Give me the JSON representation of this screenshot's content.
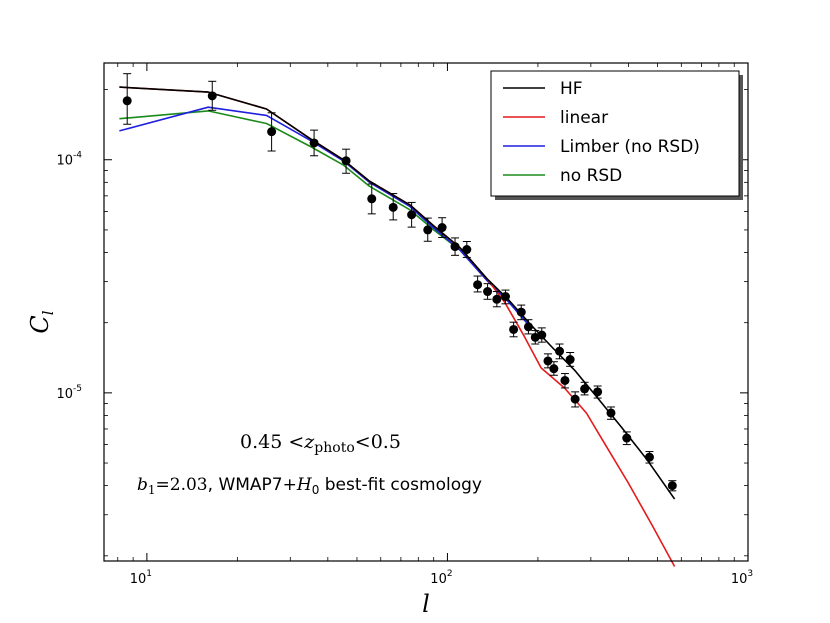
{
  "chart_data": {
    "type": "line",
    "scale": {
      "x": "log",
      "y": "log"
    },
    "xlim": [
      7.2,
      1000
    ],
    "ylim": [
      1.9e-06,
      0.00026
    ],
    "xlabel": "l",
    "ylabel": "C_l",
    "x_ticks": [
      {
        "value": 10,
        "base": "10",
        "exp": "1"
      },
      {
        "value": 100,
        "base": "10",
        "exp": "2"
      },
      {
        "value": 1000,
        "base": "10",
        "exp": "3"
      }
    ],
    "y_ticks": [
      {
        "value": 0.0001,
        "base": "10",
        "exp": "-4"
      },
      {
        "value": 1e-05,
        "base": "10",
        "exp": "-5"
      }
    ],
    "series": [
      {
        "name": "HF",
        "color": "#000000",
        "points": [
          [
            8.1,
            0.000205
          ],
          [
            16,
            0.000195
          ],
          [
            25,
            0.000165
          ],
          [
            35,
            0.000123
          ],
          [
            45,
            0.0001
          ],
          [
            55,
            8.1e-05
          ],
          [
            75,
            6.4e-05
          ],
          [
            90,
            5.2e-05
          ],
          [
            110,
            4.2e-05
          ],
          [
            135,
            3.1e-05
          ],
          [
            160,
            2.5e-05
          ],
          [
            190,
            1.95e-05
          ],
          [
            225,
            1.55e-05
          ],
          [
            265,
            1.25e-05
          ],
          [
            310,
            9.8e-06
          ],
          [
            380,
            7.1e-06
          ],
          [
            460,
            5.2e-06
          ],
          [
            570,
            3.5e-06
          ]
        ]
      },
      {
        "name": "linear",
        "color": "#e41a1c",
        "points": [
          [
            8.1,
            0.000205
          ],
          [
            16,
            0.000195
          ],
          [
            25,
            0.000165
          ],
          [
            35,
            0.000123
          ],
          [
            45,
            0.0001
          ],
          [
            55,
            8.1e-05
          ],
          [
            75,
            6.4e-05
          ],
          [
            90,
            5.2e-05
          ],
          [
            110,
            4.2e-05
          ],
          [
            135,
            3.1e-05
          ],
          [
            155,
            2.45e-05
          ],
          [
            180,
            1.75e-05
          ],
          [
            205,
            1.28e-05
          ],
          [
            245,
            1.05e-05
          ],
          [
            290,
            8.2e-06
          ],
          [
            330,
            6.2e-06
          ],
          [
            400,
            4.1e-06
          ],
          [
            480,
            2.7e-06
          ],
          [
            570,
            1.8e-06
          ]
        ]
      },
      {
        "name": "Limber (no RSD)",
        "color": "#1f1fe0",
        "points": [
          [
            8.1,
            0.000133
          ],
          [
            16,
            0.000168
          ],
          [
            25,
            0.000155
          ],
          [
            35,
            0.000121
          ],
          [
            45,
            9.9e-05
          ],
          [
            55,
            8e-05
          ],
          [
            75,
            6.3e-05
          ],
          [
            90,
            5.1e-05
          ],
          [
            110,
            4.1e-05
          ],
          [
            135,
            3.05e-05
          ],
          [
            160,
            2.45e-05
          ],
          [
            190,
            1.9e-05
          ]
        ]
      },
      {
        "name": "no RSD",
        "color": "#1b8a1b",
        "points": [
          [
            8.1,
            0.00015
          ],
          [
            16,
            0.000162
          ],
          [
            25,
            0.000143
          ],
          [
            35,
            0.000114
          ],
          [
            45,
            9.5e-05
          ],
          [
            55,
            7.7e-05
          ],
          [
            75,
            6.1e-05
          ],
          [
            90,
            5e-05
          ],
          [
            110,
            4.1e-05
          ],
          [
            135,
            3.05e-05
          ],
          [
            160,
            2.45e-05
          ],
          [
            190,
            1.9e-05
          ]
        ]
      }
    ],
    "data_points": {
      "name": "measured C_l",
      "color": "#000000",
      "points": [
        {
          "x": 8.6,
          "y": 0.000179,
          "lo": 0.000142,
          "hi": 0.000234
        },
        {
          "x": 16.5,
          "y": 0.000188,
          "lo": 0.000163,
          "hi": 0.000217
        },
        {
          "x": 26,
          "y": 0.000132,
          "lo": 0.000109,
          "hi": 0.000159
        },
        {
          "x": 36,
          "y": 0.000118,
          "lo": 0.000104,
          "hi": 0.000134
        },
        {
          "x": 46,
          "y": 9.9e-05,
          "lo": 8.75e-05,
          "hi": 0.000111
        },
        {
          "x": 56,
          "y": 6.8e-05,
          "lo": 5.86e-05,
          "hi": 7.87e-05
        },
        {
          "x": 66,
          "y": 6.25e-05,
          "lo": 5.52e-05,
          "hi": 7.16e-05
        },
        {
          "x": 76,
          "y": 5.81e-05,
          "lo": 5.14e-05,
          "hi": 6.56e-05
        },
        {
          "x": 86,
          "y": 5e-05,
          "lo": 4.47e-05,
          "hi": 5.62e-05
        },
        {
          "x": 96,
          "y": 5.12e-05,
          "lo": 4.64e-05,
          "hi": 5.64e-05
        },
        {
          "x": 106,
          "y": 4.24e-05,
          "lo": 3.89e-05,
          "hi": 4.62e-05
        },
        {
          "x": 116,
          "y": 4.12e-05,
          "lo": 3.81e-05,
          "hi": 4.46e-05
        },
        {
          "x": 126,
          "y": 2.91e-05,
          "lo": 2.71e-05,
          "hi": 3.17e-05
        },
        {
          "x": 136,
          "y": 2.72e-05,
          "lo": 2.52e-05,
          "hi": 2.94e-05
        },
        {
          "x": 146,
          "y": 2.52e-05,
          "lo": 2.34e-05,
          "hi": 2.72e-05
        },
        {
          "x": 156,
          "y": 2.59e-05,
          "lo": 2.41e-05,
          "hi": 2.76e-05
        },
        {
          "x": 166,
          "y": 1.87e-05,
          "lo": 1.74e-05,
          "hi": 2.01e-05
        },
        {
          "x": 176,
          "y": 2.22e-05,
          "lo": 2.06e-05,
          "hi": 2.38e-05
        },
        {
          "x": 186,
          "y": 1.92e-05,
          "lo": 1.79e-05,
          "hi": 2.06e-05
        },
        {
          "x": 196,
          "y": 1.73e-05,
          "lo": 1.62e-05,
          "hi": 1.85e-05
        },
        {
          "x": 206,
          "y": 1.77e-05,
          "lo": 1.65e-05,
          "hi": 1.9e-05
        },
        {
          "x": 216,
          "y": 1.37e-05,
          "lo": 1.28e-05,
          "hi": 1.47e-05
        },
        {
          "x": 226,
          "y": 1.27e-05,
          "lo": 1.19e-05,
          "hi": 1.36e-05
        },
        {
          "x": 236,
          "y": 1.51e-05,
          "lo": 1.4e-05,
          "hi": 1.62e-05
        },
        {
          "x": 246,
          "y": 1.13e-05,
          "lo": 1.05e-05,
          "hi": 1.21e-05
        },
        {
          "x": 256,
          "y": 1.39e-05,
          "lo": 1.3e-05,
          "hi": 1.49e-05
        },
        {
          "x": 266,
          "y": 9.4e-06,
          "lo": 8.7e-06,
          "hi": 1.01e-05
        },
        {
          "x": 286,
          "y": 1.04e-05,
          "lo": 9.8e-06,
          "hi": 1.11e-05
        },
        {
          "x": 316,
          "y": 1.01e-05,
          "lo": 9.5e-06,
          "hi": 1.07e-05
        },
        {
          "x": 350,
          "y": 8.2e-06,
          "lo": 7.7e-06,
          "hi": 8.7e-06
        },
        {
          "x": 395,
          "y": 6.4e-06,
          "lo": 6e-06,
          "hi": 6.8e-06
        },
        {
          "x": 470,
          "y": 5.3e-06,
          "lo": 5e-06,
          "hi": 5.6e-06
        },
        {
          "x": 560,
          "y": 4e-06,
          "lo": 3.8e-06,
          "hi": 4.2e-06
        }
      ]
    },
    "legend": {
      "position": "top-right",
      "entries": [
        "HF",
        "linear",
        "Limber (no RSD)",
        "no RSD"
      ]
    },
    "annotations": {
      "redshift_low": "0.45",
      "redshift_z": "z",
      "redshift_sub": "photo",
      "redshift_high": "0.5",
      "bias_symbol": "b",
      "bias_sub": "1",
      "bias_value": "=2.03",
      "cosmo_text": ", WMAP7+",
      "hubble_symbol": "H",
      "hubble_sub": "0",
      "cosmo_tail": " best-fit cosmology"
    }
  }
}
